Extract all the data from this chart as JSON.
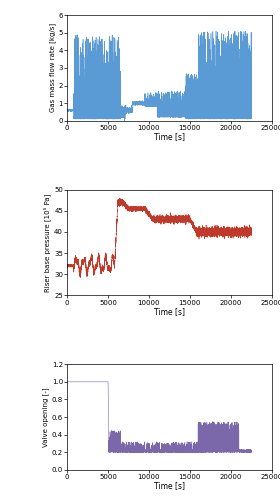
{
  "fig_width": 2.8,
  "fig_height": 5.0,
  "dpi": 100,
  "background_color": "#ffffff",
  "plots": [
    {
      "ylabel": "Gas mass flow rate [kg/s]",
      "xlabel": "Time [s]",
      "xlim": [
        0,
        25000
      ],
      "ylim": [
        0,
        6
      ],
      "yticks": [
        0,
        1,
        2,
        3,
        4,
        5,
        6
      ],
      "xticks": [
        0,
        5000,
        10000,
        15000,
        20000,
        25000
      ],
      "color": "#5b9bd5",
      "linewidth": 0.4
    },
    {
      "ylabel": "Riser base pressure [10⁵ Pa]",
      "xlabel": "Time [s]",
      "xlim": [
        0,
        25000
      ],
      "ylim": [
        25,
        50
      ],
      "yticks": [
        25,
        30,
        35,
        40,
        45,
        50
      ],
      "xticks": [
        0,
        5000,
        10000,
        15000,
        20000,
        25000
      ],
      "color": "#c0392b",
      "linewidth": 0.4
    },
    {
      "ylabel": "Valve opening [-]",
      "xlabel": "Time [s]",
      "xlim": [
        0,
        25000
      ],
      "ylim": [
        0,
        1.2
      ],
      "yticks": [
        0,
        0.2,
        0.4,
        0.6,
        0.8,
        1.0,
        1.2
      ],
      "xticks": [
        0,
        5000,
        10000,
        15000,
        20000,
        25000
      ],
      "color": "#7b68aa",
      "linewidth": 0.4
    }
  ]
}
